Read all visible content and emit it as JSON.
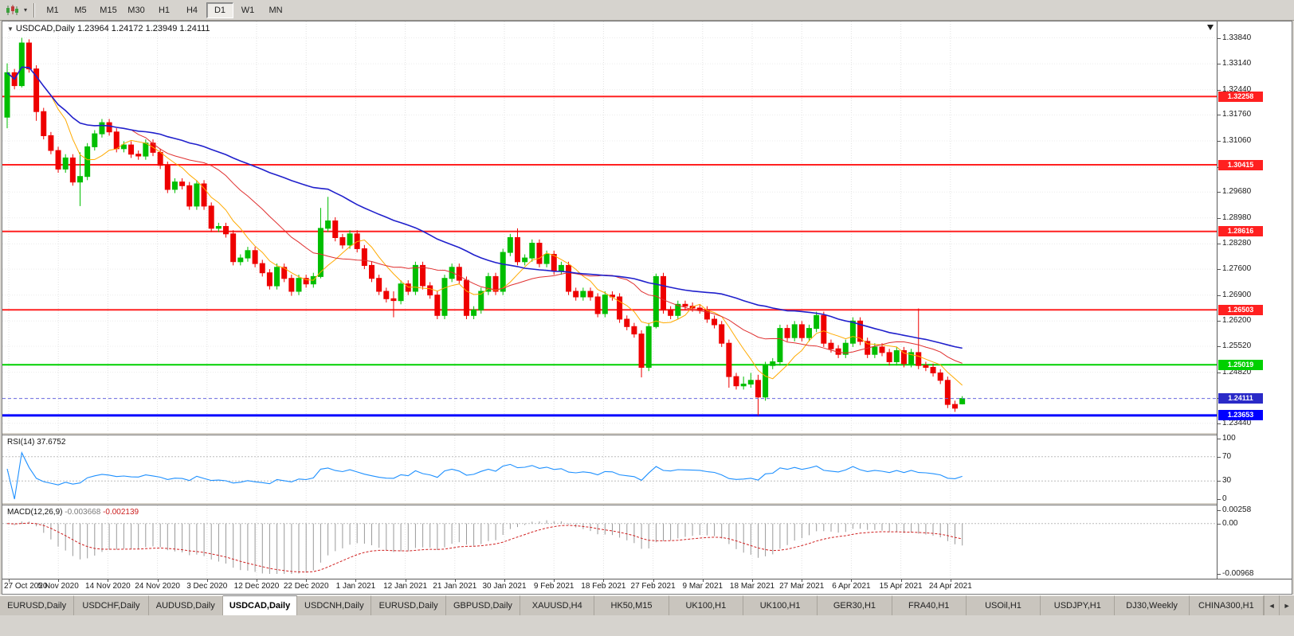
{
  "toolbar": {
    "chart_type_icon": "candlestick-chart-icon",
    "dropdown_icon": "▾",
    "timeframes": [
      {
        "label": "M1",
        "active": false
      },
      {
        "label": "M5",
        "active": false
      },
      {
        "label": "M15",
        "active": false
      },
      {
        "label": "M30",
        "active": false
      },
      {
        "label": "H1",
        "active": false
      },
      {
        "label": "H4",
        "active": false
      },
      {
        "label": "D1",
        "active": true
      },
      {
        "label": "W1",
        "active": false
      },
      {
        "label": "MN",
        "active": false
      }
    ]
  },
  "chart": {
    "title": {
      "collapse_icon": "▼",
      "symbol": "USDCAD,Daily",
      "ohlc": "1.23964 1.24172 1.23949 1.24111"
    },
    "price_scale": {
      "ticks": [
        "1.33840",
        "1.33140",
        "1.32440",
        "1.31760",
        "1.31060",
        "1.30360",
        "1.29680",
        "1.28980",
        "1.28280",
        "1.27600",
        "1.26900",
        "1.26200",
        "1.25520",
        "1.24820",
        "1.24120",
        "1.23440"
      ]
    }
  },
  "panels": {
    "rsi": {
      "name": "RSI(14)",
      "value": "37.6752",
      "ticks": [
        "100",
        "70",
        "30",
        "0"
      ],
      "levels": [
        70,
        30
      ]
    },
    "macd": {
      "name": "MACD(12,26,9)",
      "value_main": "-0.003668",
      "value_signal": "-0.002139",
      "ticks": [
        "0.00258",
        "0.00",
        "-0.00968"
      ]
    }
  },
  "tabs": {
    "scroll_left_icon": "◄",
    "scroll_right_icon": "►",
    "items": [
      {
        "label": "EURUSD,Daily",
        "active": false
      },
      {
        "label": "USDCHF,Daily",
        "active": false
      },
      {
        "label": "AUDUSD,Daily",
        "active": false
      },
      {
        "label": "USDCAD,Daily",
        "active": true
      },
      {
        "label": "USDCNH,Daily",
        "active": false
      },
      {
        "label": "EURUSD,Daily",
        "active": false
      },
      {
        "label": "GBPUSD,Daily",
        "active": false
      },
      {
        "label": "XAUUSD,H4",
        "active": false
      },
      {
        "label": "HK50,M15",
        "active": false
      },
      {
        "label": "UK100,H1",
        "active": false
      },
      {
        "label": "UK100,H1",
        "active": false
      },
      {
        "label": "GER30,H1",
        "active": false
      },
      {
        "label": "FRA40,H1",
        "active": false
      },
      {
        "label": "USOil,H1",
        "active": false
      },
      {
        "label": "USDJPY,H1",
        "active": false
      },
      {
        "label": "DJ30,Weekly",
        "active": false
      },
      {
        "label": "CHINA300,H1",
        "active": false
      }
    ]
  },
  "chart_data": {
    "type": "candlestick",
    "symbol": "USDCAD",
    "timeframe": "Daily",
    "y_range": [
      1.232,
      1.3428
    ],
    "current_price": 1.24111,
    "current_price_label": "1.24111",
    "current_price_label_bg": "#2A2AC8",
    "hlines": [
      {
        "price": 1.32258,
        "label": "1.32258",
        "color": "#FF2020",
        "width": 2
      },
      {
        "price": 1.30415,
        "label": "1.30415",
        "color": "#FF2020",
        "width": 2
      },
      {
        "price": 1.28616,
        "label": "1.28616",
        "color": "#FF2020",
        "width": 2
      },
      {
        "price": 1.26503,
        "label": "1.26503",
        "color": "#FF2020",
        "width": 2
      },
      {
        "price": 1.25019,
        "label": "1.25019",
        "color": "#00D000",
        "width": 2
      },
      {
        "price": 1.23653,
        "label": "1.23653",
        "color": "#0000FF",
        "width": 3
      }
    ],
    "moving_averages": [
      {
        "period": 7,
        "color_class": "ma-fast"
      },
      {
        "period": 18,
        "color_class": "ma-mid"
      },
      {
        "period": 45,
        "color_class": "ma-slow"
      }
    ],
    "indicators": [
      {
        "name": "RSI",
        "period": 14,
        "value": 37.6752
      },
      {
        "name": "MACD",
        "fast": 12,
        "slow": 26,
        "signal": 9,
        "value": -0.003668,
        "signal_value": -0.002139
      }
    ],
    "x_labels": [
      "27 Oct 2020",
      "5 Nov 2020",
      "14 Nov 2020",
      "24 Nov 2020",
      "3 Dec 2020",
      "12 Dec 2020",
      "22 Dec 2020",
      "1 Jan 2021",
      "12 Jan 2021",
      "21 Jan 2021",
      "30 Jan 2021",
      "9 Feb 2021",
      "18 Feb 2021",
      "27 Feb 2021",
      "9 Mar 2021",
      "18 Mar 2021",
      "27 Mar 2021",
      "6 Apr 2021",
      "15 Apr 2021",
      "24 Apr 2021"
    ],
    "candles": [
      [
        1.317,
        1.3315,
        1.314,
        1.329
      ],
      [
        1.329,
        1.33,
        1.3245,
        1.3255
      ],
      [
        1.3255,
        1.3384,
        1.325,
        1.337
      ],
      [
        1.337,
        1.338,
        1.329,
        1.33
      ],
      [
        1.33,
        1.331,
        1.316,
        1.3185
      ],
      [
        1.3185,
        1.3195,
        1.311,
        1.312
      ],
      [
        1.312,
        1.313,
        1.307,
        1.308
      ],
      [
        1.308,
        1.309,
        1.302,
        1.303
      ],
      [
        1.303,
        1.307,
        1.302,
        1.306
      ],
      [
        1.306,
        1.307,
        1.2985,
        1.2995
      ],
      [
        1.2995,
        1.3075,
        1.293,
        1.301
      ],
      [
        1.301,
        1.31,
        1.3,
        1.309
      ],
      [
        1.309,
        1.3135,
        1.308,
        1.3125
      ],
      [
        1.3125,
        1.3165,
        1.3115,
        1.3155
      ],
      [
        1.3155,
        1.3165,
        1.312,
        1.313
      ],
      [
        1.313,
        1.314,
        1.3075,
        1.3085
      ],
      [
        1.3085,
        1.3105,
        1.3075,
        1.3095
      ],
      [
        1.3095,
        1.3105,
        1.306,
        1.307
      ],
      [
        1.307,
        1.308,
        1.3055,
        1.3065
      ],
      [
        1.3065,
        1.311,
        1.3055,
        1.31
      ],
      [
        1.31,
        1.311,
        1.3065,
        1.3075
      ],
      [
        1.3075,
        1.3085,
        1.303,
        1.304
      ],
      [
        1.304,
        1.305,
        1.2965,
        1.2975
      ],
      [
        1.2975,
        1.3005,
        1.2965,
        1.2995
      ],
      [
        1.2995,
        1.3005,
        1.2975,
        1.2985
      ],
      [
        1.2985,
        1.2995,
        1.292,
        1.293
      ],
      [
        1.293,
        1.3,
        1.292,
        1.299
      ],
      [
        1.299,
        1.3,
        1.292,
        1.293
      ],
      [
        1.293,
        1.294,
        1.286,
        1.287
      ],
      [
        1.287,
        1.2885,
        1.286,
        1.2875
      ],
      [
        1.2875,
        1.2885,
        1.2845,
        1.2855
      ],
      [
        1.2855,
        1.2865,
        1.277,
        1.278
      ],
      [
        1.278,
        1.28,
        1.277,
        1.279
      ],
      [
        1.279,
        1.282,
        1.278,
        1.281
      ],
      [
        1.281,
        1.282,
        1.2765,
        1.2775
      ],
      [
        1.2775,
        1.2785,
        1.274,
        1.275
      ],
      [
        1.275,
        1.276,
        1.2705,
        1.2715
      ],
      [
        1.2715,
        1.2775,
        1.2705,
        1.2765
      ],
      [
        1.2765,
        1.2775,
        1.2725,
        1.2735
      ],
      [
        1.2735,
        1.2745,
        1.2688,
        1.27
      ],
      [
        1.27,
        1.2745,
        1.269,
        1.2735
      ],
      [
        1.2735,
        1.2745,
        1.271,
        1.272
      ],
      [
        1.272,
        1.275,
        1.271,
        1.274
      ],
      [
        1.274,
        1.2925,
        1.2735,
        1.287
      ],
      [
        1.287,
        1.2955,
        1.286,
        1.289
      ],
      [
        1.289,
        1.29,
        1.2835,
        1.2845
      ],
      [
        1.2845,
        1.2855,
        1.2815,
        1.2825
      ],
      [
        1.2825,
        1.2865,
        1.2815,
        1.2855
      ],
      [
        1.2855,
        1.2865,
        1.2805,
        1.2815
      ],
      [
        1.2815,
        1.2825,
        1.276,
        1.277
      ],
      [
        1.277,
        1.278,
        1.2725,
        1.2735
      ],
      [
        1.2735,
        1.2745,
        1.269,
        1.27
      ],
      [
        1.27,
        1.271,
        1.267,
        1.268
      ],
      [
        1.268,
        1.27,
        1.263,
        1.2675
      ],
      [
        1.2675,
        1.273,
        1.2665,
        1.272
      ],
      [
        1.272,
        1.273,
        1.269,
        1.27
      ],
      [
        1.27,
        1.278,
        1.269,
        1.277
      ],
      [
        1.277,
        1.278,
        1.2705,
        1.2715
      ],
      [
        1.2715,
        1.2725,
        1.268,
        1.269
      ],
      [
        1.269,
        1.27,
        1.2625,
        1.2635
      ],
      [
        1.2635,
        1.2745,
        1.2625,
        1.2735
      ],
      [
        1.2735,
        1.2775,
        1.2725,
        1.2765
      ],
      [
        1.2765,
        1.2775,
        1.272,
        1.273
      ],
      [
        1.273,
        1.274,
        1.2625,
        1.2635
      ],
      [
        1.2635,
        1.266,
        1.2625,
        1.265
      ],
      [
        1.265,
        1.271,
        1.264,
        1.27
      ],
      [
        1.27,
        1.275,
        1.269,
        1.274
      ],
      [
        1.274,
        1.275,
        1.269,
        1.27
      ],
      [
        1.27,
        1.2815,
        1.269,
        1.2805
      ],
      [
        1.2805,
        1.2855,
        1.2795,
        1.2845
      ],
      [
        1.2845,
        1.287,
        1.277,
        1.278
      ],
      [
        1.278,
        1.28,
        1.277,
        1.279
      ],
      [
        1.279,
        1.284,
        1.278,
        1.283
      ],
      [
        1.283,
        1.284,
        1.2765,
        1.2775
      ],
      [
        1.2775,
        1.281,
        1.2765,
        1.28
      ],
      [
        1.28,
        1.281,
        1.2745,
        1.2755
      ],
      [
        1.2755,
        1.278,
        1.2745,
        1.277
      ],
      [
        1.277,
        1.278,
        1.269,
        1.27
      ],
      [
        1.27,
        1.271,
        1.2675,
        1.2685
      ],
      [
        1.2685,
        1.271,
        1.2675,
        1.27
      ],
      [
        1.27,
        1.271,
        1.2675,
        1.2685
      ],
      [
        1.2685,
        1.2695,
        1.263,
        1.264
      ],
      [
        1.264,
        1.27,
        1.263,
        1.269
      ],
      [
        1.269,
        1.27,
        1.2675,
        1.2685
      ],
      [
        1.2685,
        1.2695,
        1.2615,
        1.2625
      ],
      [
        1.2625,
        1.2635,
        1.2595,
        1.2605
      ],
      [
        1.2605,
        1.2615,
        1.2575,
        1.2585
      ],
      [
        1.2585,
        1.2595,
        1.2468,
        1.2495
      ],
      [
        1.2495,
        1.2615,
        1.2485,
        1.2605
      ],
      [
        1.2605,
        1.2748,
        1.26,
        1.274
      ],
      [
        1.274,
        1.275,
        1.264,
        1.265
      ],
      [
        1.265,
        1.266,
        1.2625,
        1.2635
      ],
      [
        1.2635,
        1.2675,
        1.2625,
        1.2665
      ],
      [
        1.2665,
        1.2675,
        1.265,
        1.266
      ],
      [
        1.266,
        1.267,
        1.2645,
        1.2655
      ],
      [
        1.2655,
        1.2665,
        1.264,
        1.265
      ],
      [
        1.265,
        1.266,
        1.2615,
        1.2625
      ],
      [
        1.2625,
        1.2635,
        1.26,
        1.261
      ],
      [
        1.261,
        1.262,
        1.255,
        1.256
      ],
      [
        1.256,
        1.257,
        1.244,
        1.247
      ],
      [
        1.247,
        1.248,
        1.2435,
        1.2445
      ],
      [
        1.2445,
        1.247,
        1.2435,
        1.245
      ],
      [
        1.245,
        1.248,
        1.244,
        1.246
      ],
      [
        1.246,
        1.2475,
        1.2365,
        1.2415
      ],
      [
        1.2415,
        1.251,
        1.2405,
        1.25
      ],
      [
        1.25,
        1.252,
        1.249,
        1.251
      ],
      [
        1.251,
        1.261,
        1.25,
        1.26
      ],
      [
        1.26,
        1.261,
        1.2565,
        1.2575
      ],
      [
        1.2575,
        1.262,
        1.2565,
        1.261
      ],
      [
        1.261,
        1.262,
        1.2565,
        1.2575
      ],
      [
        1.2575,
        1.261,
        1.2565,
        1.26
      ],
      [
        1.26,
        1.2645,
        1.259,
        1.2635
      ],
      [
        1.2635,
        1.2645,
        1.255,
        1.256
      ],
      [
        1.256,
        1.257,
        1.2535,
        1.2545
      ],
      [
        1.2545,
        1.2555,
        1.252,
        1.253
      ],
      [
        1.253,
        1.257,
        1.252,
        1.256
      ],
      [
        1.256,
        1.263,
        1.255,
        1.262
      ],
      [
        1.262,
        1.263,
        1.2555,
        1.2565
      ],
      [
        1.2565,
        1.2575,
        1.252,
        1.253
      ],
      [
        1.253,
        1.256,
        1.252,
        1.255
      ],
      [
        1.255,
        1.256,
        1.2525,
        1.2535
      ],
      [
        1.2535,
        1.2545,
        1.25,
        1.251
      ],
      [
        1.251,
        1.255,
        1.25,
        1.254
      ],
      [
        1.254,
        1.255,
        1.2495,
        1.2505
      ],
      [
        1.2505,
        1.2545,
        1.2495,
        1.2535
      ],
      [
        1.2535,
        1.2654,
        1.249,
        1.25
      ],
      [
        1.25,
        1.251,
        1.2485,
        1.2495
      ],
      [
        1.2495,
        1.2505,
        1.247,
        1.248
      ],
      [
        1.248,
        1.249,
        1.245,
        1.246
      ],
      [
        1.246,
        1.247,
        1.2385,
        1.2395
      ],
      [
        1.2395,
        1.2405,
        1.2375,
        1.2385
      ],
      [
        1.23964,
        1.24172,
        1.23949,
        1.24111
      ]
    ]
  }
}
